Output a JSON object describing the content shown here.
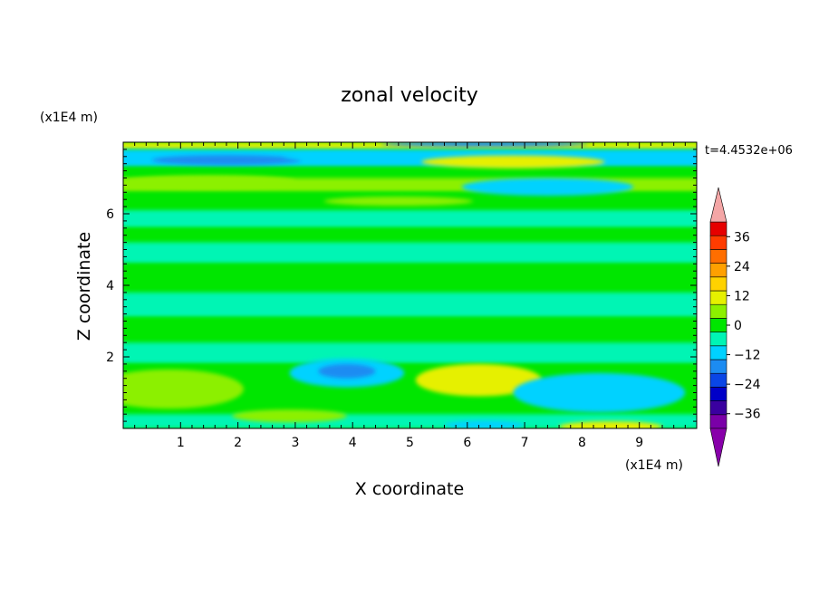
{
  "chart_data": {
    "type": "heatmap",
    "title": "zonal velocity",
    "xlabel": "X coordinate",
    "ylabel": "Z coordinate",
    "x_unit": "(x1E4 m)",
    "y_unit": "(x1E4 m)",
    "time_label": "t=4.4532e+06",
    "xlim": [
      0,
      10
    ],
    "ylim": [
      0,
      8
    ],
    "x_ticks": [
      1,
      2,
      3,
      4,
      5,
      6,
      7,
      8,
      9
    ],
    "y_ticks": [
      2,
      4,
      6
    ],
    "x_tick_labels": [
      "1",
      "2",
      "3",
      "4",
      "5",
      "6",
      "7",
      "8",
      "9"
    ],
    "y_tick_labels": [
      "2",
      "4",
      "6"
    ],
    "colorbar": {
      "levels": [
        -42,
        -36,
        -30,
        -24,
        -18,
        -12,
        -6,
        0,
        6,
        12,
        18,
        24,
        30,
        36,
        42
      ],
      "tick_values": [
        36,
        24,
        12,
        0,
        -12,
        -24,
        -36
      ],
      "tick_labels": [
        "36",
        "24",
        "12",
        "0",
        "−12",
        "−24",
        "−36"
      ],
      "colors": [
        "#7a00a8",
        "#3a00a0",
        "#0000c8",
        "#0a46e6",
        "#1c8cf2",
        "#00d2ff",
        "#00f5b4",
        "#00e600",
        "#8cf000",
        "#e6f000",
        "#ffd200",
        "#ffa000",
        "#ff6e00",
        "#ff3c00",
        "#e60000"
      ],
      "extend_low_color": "#8800aa",
      "extend_high_color": "#f4a6a6"
    },
    "bands": [
      {
        "z0": 7.8,
        "z1": 8.0,
        "value": 12
      },
      {
        "z0": 7.3,
        "z1": 7.8,
        "value": -8
      },
      {
        "z0": 7.0,
        "z1": 7.3,
        "value": 3
      },
      {
        "z0": 6.6,
        "z1": 7.0,
        "value": 8
      },
      {
        "z0": 6.1,
        "z1": 6.6,
        "value": 2
      },
      {
        "z0": 5.6,
        "z1": 6.1,
        "value": -3
      },
      {
        "z0": 5.2,
        "z1": 5.6,
        "value": 2
      },
      {
        "z0": 4.6,
        "z1": 5.2,
        "value": -4
      },
      {
        "z0": 3.8,
        "z1": 4.6,
        "value": 2
      },
      {
        "z0": 3.1,
        "z1": 3.8,
        "value": -3
      },
      {
        "z0": 2.4,
        "z1": 3.1,
        "value": 2
      },
      {
        "z0": 1.8,
        "z1": 2.4,
        "value": -4
      },
      {
        "z0": 0.4,
        "z1": 1.8,
        "value": 1
      },
      {
        "z0": 0.0,
        "z1": 0.4,
        "value": -6
      }
    ],
    "cells": [
      {
        "x": 6.8,
        "z": 7.45,
        "rx": 1.6,
        "rz": 0.18,
        "value": 14
      },
      {
        "x": 1.8,
        "z": 7.5,
        "rx": 1.3,
        "rz": 0.14,
        "value": -14
      },
      {
        "x": 6.3,
        "z": 7.95,
        "rx": 1.8,
        "rz": 0.08,
        "value": -18
      },
      {
        "x": 3.8,
        "z": 7.6,
        "rx": 1.0,
        "rz": 0.1,
        "value": -10
      },
      {
        "x": 1.5,
        "z": 6.9,
        "rx": 1.5,
        "rz": 0.18,
        "value": 10
      },
      {
        "x": 7.4,
        "z": 6.75,
        "rx": 1.5,
        "rz": 0.25,
        "value": -9
      },
      {
        "x": 4.8,
        "z": 6.35,
        "rx": 1.3,
        "rz": 0.13,
        "value": 7
      },
      {
        "x": 0.8,
        "z": 1.1,
        "rx": 1.3,
        "rz": 0.55,
        "value": 10
      },
      {
        "x": 3.9,
        "z": 1.55,
        "rx": 1.0,
        "rz": 0.4,
        "value": -12
      },
      {
        "x": 3.9,
        "z": 1.6,
        "rx": 0.5,
        "rz": 0.2,
        "value": -16
      },
      {
        "x": 6.2,
        "z": 1.35,
        "rx": 1.1,
        "rz": 0.45,
        "value": 12
      },
      {
        "x": 8.3,
        "z": 1.0,
        "rx": 1.5,
        "rz": 0.55,
        "value": -7
      },
      {
        "x": 8.5,
        "z": 0.05,
        "rx": 0.9,
        "rz": 0.15,
        "value": 14
      },
      {
        "x": 6.3,
        "z": 0.1,
        "rx": 0.7,
        "rz": 0.12,
        "value": -12
      },
      {
        "x": 2.9,
        "z": 0.35,
        "rx": 1.0,
        "rz": 0.18,
        "value": 10
      }
    ]
  }
}
